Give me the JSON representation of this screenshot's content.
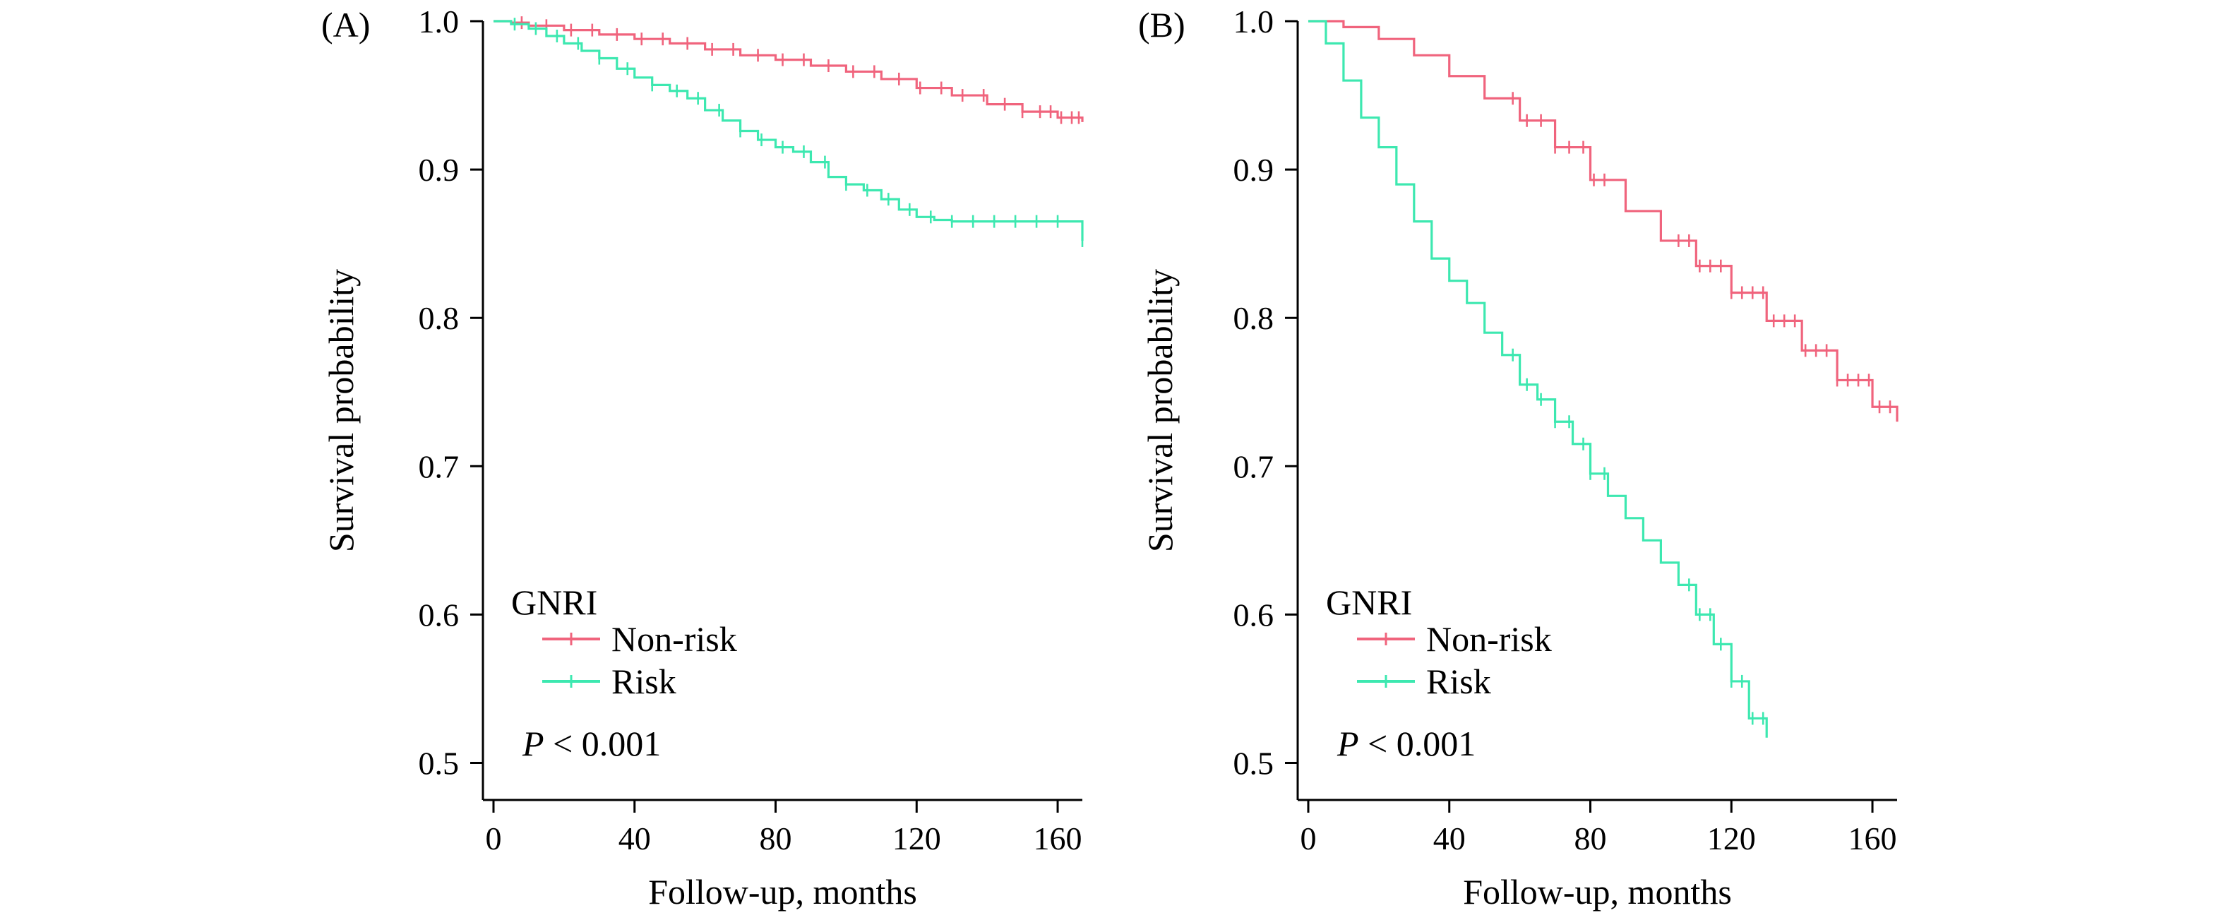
{
  "chart_data": [
    {
      "type": "line",
      "panel_label": "(A)",
      "xlabel": "Follow-up, months",
      "ylabel": "Survival probability",
      "xlim": [
        -3,
        167
      ],
      "ylim": [
        0.475,
        1.0
      ],
      "xticks": [
        0,
        40,
        80,
        120,
        160
      ],
      "yticks": [
        0.5,
        0.6,
        0.7,
        0.8,
        0.9,
        1.0
      ],
      "xtick_labels": [
        "0",
        "40",
        "80",
        "120",
        "160"
      ],
      "ytick_labels": [
        "0.5",
        "0.6",
        "0.7",
        "0.8",
        "0.9",
        "1.0"
      ],
      "legend": {
        "title": "GNRI",
        "position": "bottom-left"
      },
      "annotation": {
        "italic": "P",
        "text": " < 0.001"
      },
      "series": [
        {
          "name": "Non-risk",
          "color": "#F0647D",
          "x": [
            0,
            5,
            10,
            20,
            30,
            40,
            50,
            60,
            70,
            80,
            90,
            100,
            110,
            120,
            130,
            140,
            150,
            160,
            167
          ],
          "y": [
            1.0,
            0.999,
            0.997,
            0.994,
            0.991,
            0.988,
            0.985,
            0.981,
            0.977,
            0.974,
            0.97,
            0.966,
            0.961,
            0.955,
            0.95,
            0.944,
            0.939,
            0.935,
            0.932
          ],
          "censor_x": [
            8,
            15,
            22,
            28,
            35,
            42,
            48,
            55,
            62,
            68,
            75,
            82,
            88,
            95,
            102,
            108,
            115,
            121,
            127,
            133,
            139,
            145,
            150,
            155,
            158,
            161,
            164,
            166
          ]
        },
        {
          "name": "Risk",
          "color": "#3DE8B0",
          "x": [
            0,
            5,
            10,
            15,
            20,
            25,
            30,
            35,
            40,
            45,
            50,
            55,
            60,
            65,
            70,
            75,
            80,
            85,
            90,
            95,
            100,
            105,
            110,
            115,
            120,
            125,
            130,
            140,
            150,
            160,
            166,
            167
          ],
          "y": [
            1.0,
            0.998,
            0.995,
            0.99,
            0.985,
            0.98,
            0.975,
            0.968,
            0.962,
            0.957,
            0.953,
            0.948,
            0.94,
            0.933,
            0.926,
            0.92,
            0.915,
            0.912,
            0.905,
            0.895,
            0.89,
            0.886,
            0.88,
            0.873,
            0.868,
            0.866,
            0.865,
            0.865,
            0.865,
            0.865,
            0.865,
            0.852
          ],
          "censor_x": [
            6,
            12,
            18,
            24,
            30,
            38,
            45,
            52,
            58,
            64,
            70,
            76,
            82,
            88,
            94,
            100,
            106,
            112,
            118,
            124,
            130,
            136,
            142,
            148,
            154,
            160,
            167
          ]
        }
      ]
    },
    {
      "type": "line",
      "panel_label": "(B)",
      "xlabel": "Follow-up, months",
      "ylabel": "Survival probability",
      "xlim": [
        -3,
        167
      ],
      "ylim": [
        0.475,
        1.0
      ],
      "xticks": [
        0,
        40,
        80,
        120,
        160
      ],
      "yticks": [
        0.5,
        0.6,
        0.7,
        0.8,
        0.9,
        1.0
      ],
      "xtick_labels": [
        "0",
        "40",
        "80",
        "120",
        "160"
      ],
      "ytick_labels": [
        "0.5",
        "0.6",
        "0.7",
        "0.8",
        "0.9",
        "1.0"
      ],
      "legend": {
        "title": "GNRI",
        "position": "bottom-left"
      },
      "annotation": {
        "italic": "P",
        "text": " < 0.001"
      },
      "series": [
        {
          "name": "Non-risk",
          "color": "#F0647D",
          "x": [
            0,
            10,
            20,
            30,
            40,
            50,
            60,
            70,
            80,
            90,
            100,
            110,
            120,
            130,
            140,
            150,
            160,
            167
          ],
          "y": [
            1.0,
            0.996,
            0.988,
            0.977,
            0.963,
            0.948,
            0.933,
            0.915,
            0.893,
            0.872,
            0.852,
            0.835,
            0.817,
            0.798,
            0.778,
            0.758,
            0.74,
            0.73
          ],
          "censor_x": [
            58,
            62,
            66,
            70,
            74,
            78,
            81,
            84,
            105,
            108,
            111,
            114,
            117,
            120,
            123,
            126,
            129,
            132,
            135,
            138,
            141,
            144,
            147,
            150,
            153,
            156,
            159,
            162,
            165
          ]
        },
        {
          "name": "Risk",
          "color": "#3DE8B0",
          "x": [
            0,
            5,
            10,
            15,
            20,
            25,
            30,
            35,
            40,
            45,
            50,
            55,
            60,
            65,
            70,
            75,
            80,
            85,
            90,
            95,
            100,
            105,
            110,
            115,
            120,
            125,
            130
          ],
          "y": [
            1.0,
            0.985,
            0.96,
            0.935,
            0.915,
            0.89,
            0.865,
            0.84,
            0.825,
            0.81,
            0.79,
            0.775,
            0.755,
            0.745,
            0.73,
            0.715,
            0.695,
            0.68,
            0.665,
            0.65,
            0.635,
            0.62,
            0.6,
            0.58,
            0.555,
            0.53,
            0.517
          ],
          "censor_x": [
            58,
            62,
            66,
            70,
            74,
            78,
            80,
            84,
            108,
            111,
            114,
            117,
            120,
            123,
            126,
            129
          ]
        }
      ]
    }
  ]
}
